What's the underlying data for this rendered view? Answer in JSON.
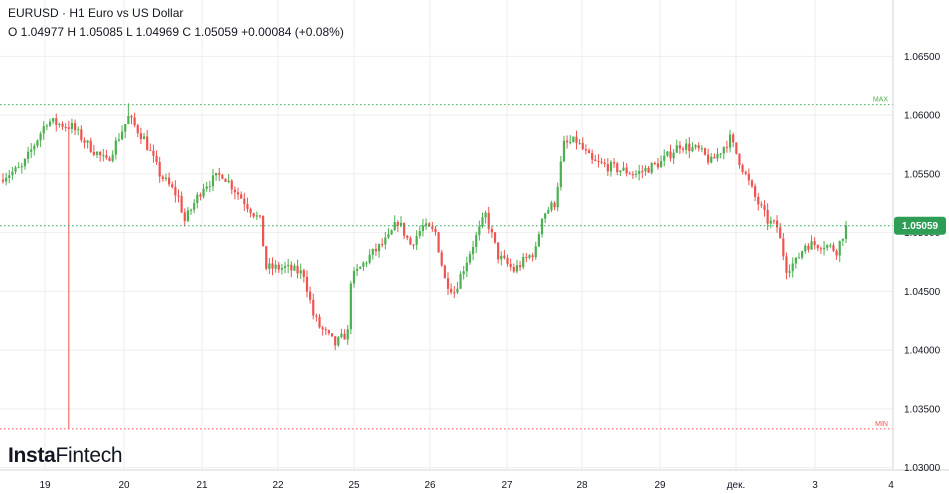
{
  "header": {
    "title": "EURUSD · H1 Euro vs US Dollar",
    "ohlc": "O 1.04977 H 1.05085 L 1.04969 C 1.05059  +0.00084 (+0.08%)"
  },
  "logo": {
    "part1": "Insta",
    "part2": "Fintech"
  },
  "colors": {
    "up": "#26a69a",
    "down": "#ef5350",
    "up_line": "#4caf50",
    "max_line": "#4caf50",
    "min_line": "#ef5350",
    "last_price": "#2e9e57",
    "grid": "#eeeeee"
  },
  "chart_data": {
    "type": "candlestick",
    "symbol": "EURUSD",
    "timeframe": "H1",
    "y_ticks": [
      "1.06500",
      "1.06000",
      "1.05500",
      "1.05000",
      "1.04500",
      "1.04000",
      "1.03500",
      "1.03000"
    ],
    "ylim": [
      1.0295,
      1.0695
    ],
    "x_ticks": [
      "19",
      "20",
      "21",
      "22",
      "25",
      "26",
      "27",
      "28",
      "29",
      "дек.",
      "3",
      "4"
    ],
    "max_label": "MAX",
    "min_label": "MIN",
    "max_value": 1.0609,
    "min_value": 1.0333,
    "last_price_label": "1.05059",
    "last_price": 1.05059,
    "anchors": [
      [
        0,
        1.0548
      ],
      [
        6,
        1.0555
      ],
      [
        14,
        1.0595
      ],
      [
        22,
        1.059
      ],
      [
        27,
        1.0575
      ],
      [
        33,
        1.056
      ],
      [
        40,
        1.0598
      ],
      [
        45,
        1.058
      ],
      [
        50,
        1.055
      ],
      [
        56,
        1.053
      ],
      [
        58,
        1.051
      ],
      [
        64,
        1.054
      ],
      [
        70,
        1.055
      ],
      [
        76,
        1.053
      ],
      [
        82,
        1.051
      ],
      [
        84,
        1.047
      ],
      [
        90,
        1.047
      ],
      [
        96,
        1.0465
      ],
      [
        99,
        1.043
      ],
      [
        101,
        1.042
      ],
      [
        106,
        1.0405
      ],
      [
        110,
        1.0415
      ],
      [
        111,
        1.046
      ],
      [
        117,
        1.048
      ],
      [
        123,
        1.0495
      ],
      [
        126,
        1.051
      ],
      [
        130,
        1.049
      ],
      [
        134,
        1.0505
      ],
      [
        138,
        1.05
      ],
      [
        141,
        1.046
      ],
      [
        144,
        1.045
      ],
      [
        147,
        1.047
      ],
      [
        150,
        1.049
      ],
      [
        154,
        1.0515
      ],
      [
        158,
        1.048
      ],
      [
        163,
        1.0468
      ],
      [
        170,
        1.0485
      ],
      [
        172,
        1.0515
      ],
      [
        176,
        1.0525
      ],
      [
        179,
        1.0575
      ],
      [
        183,
        1.0578
      ],
      [
        188,
        1.056
      ],
      [
        195,
        1.0555
      ],
      [
        202,
        1.055
      ],
      [
        210,
        1.056
      ],
      [
        216,
        1.0575
      ],
      [
        222,
        1.057
      ],
      [
        226,
        1.056
      ],
      [
        232,
        1.058
      ],
      [
        236,
        1.0555
      ],
      [
        240,
        1.053
      ],
      [
        244,
        1.051
      ],
      [
        247,
        1.0505
      ],
      [
        250,
        1.047
      ],
      [
        253,
        1.0475
      ],
      [
        256,
        1.049
      ],
      [
        262,
        1.049
      ],
      [
        266,
        1.0485
      ],
      [
        269,
        1.0505
      ]
    ]
  }
}
